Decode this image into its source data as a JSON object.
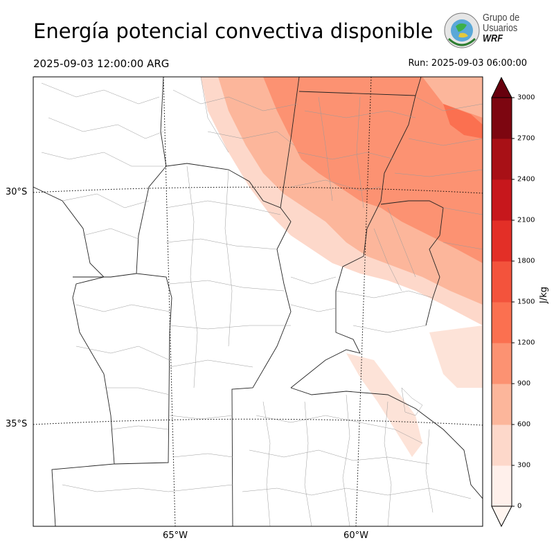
{
  "header": {
    "title": "Energía potencial convectiva disponible",
    "valid_time": "2025-09-03 12:00:00 ARG",
    "run_time": "Run: 2025-09-03 06:00:00"
  },
  "logo": {
    "line1": "Grupo de",
    "line2": "Usuarios",
    "line3": "WRF"
  },
  "map": {
    "lat_labels": [
      "30°S",
      "35°S"
    ],
    "lon_labels": [
      "65°W",
      "60°W"
    ],
    "field": "CAPE",
    "background": "#ffffff",
    "border_color": "#000000"
  },
  "colorbar": {
    "unit": "J/kg",
    "ticks": [
      "0",
      "300",
      "600",
      "900",
      "1200",
      "1500",
      "1800",
      "2100",
      "2400",
      "2700",
      "3000"
    ],
    "colors": [
      "#fff0eb",
      "#fdd8ca",
      "#fcb69b",
      "#fc9272",
      "#fb7050",
      "#f3533c",
      "#e32f27",
      "#c7171c",
      "#a81016",
      "#7d0610"
    ],
    "extend": "both"
  }
}
